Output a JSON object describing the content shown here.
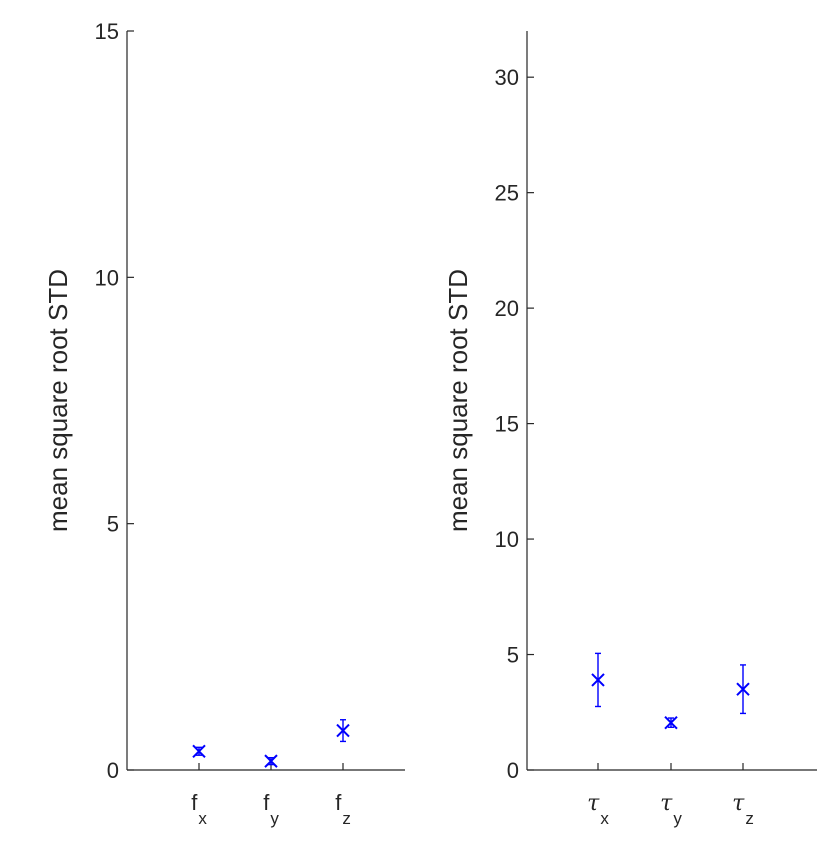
{
  "chart_data": [
    {
      "type": "scatter",
      "title": "",
      "xlabel": "",
      "ylabel": "mean square root STD",
      "ylim": [
        0,
        15
      ],
      "yticks": [
        0,
        5,
        10,
        15
      ],
      "grid": false,
      "categories": [
        {
          "main": "f",
          "sub": "x"
        },
        {
          "main": "f",
          "sub": "y"
        },
        {
          "main": "f",
          "sub": "z"
        }
      ],
      "series": [
        {
          "color": "#0000ff",
          "marker": "x",
          "values": [
            0.38,
            0.18,
            0.8
          ],
          "error": [
            0.08,
            0.07,
            0.22
          ]
        }
      ]
    },
    {
      "type": "scatter",
      "title": "",
      "xlabel": "",
      "ylabel": "mean square root STD",
      "ylim": [
        0,
        32
      ],
      "yticks": [
        0,
        5,
        10,
        15,
        20,
        25,
        30
      ],
      "grid": false,
      "categories": [
        {
          "main": "τ",
          "sub": "x"
        },
        {
          "main": "τ",
          "sub": "y"
        },
        {
          "main": "τ",
          "sub": "z"
        }
      ],
      "series": [
        {
          "color": "#0000ff",
          "marker": "x",
          "values": [
            3.9,
            2.05,
            3.5
          ],
          "error": [
            1.15,
            0.2,
            1.05
          ]
        }
      ]
    }
  ]
}
